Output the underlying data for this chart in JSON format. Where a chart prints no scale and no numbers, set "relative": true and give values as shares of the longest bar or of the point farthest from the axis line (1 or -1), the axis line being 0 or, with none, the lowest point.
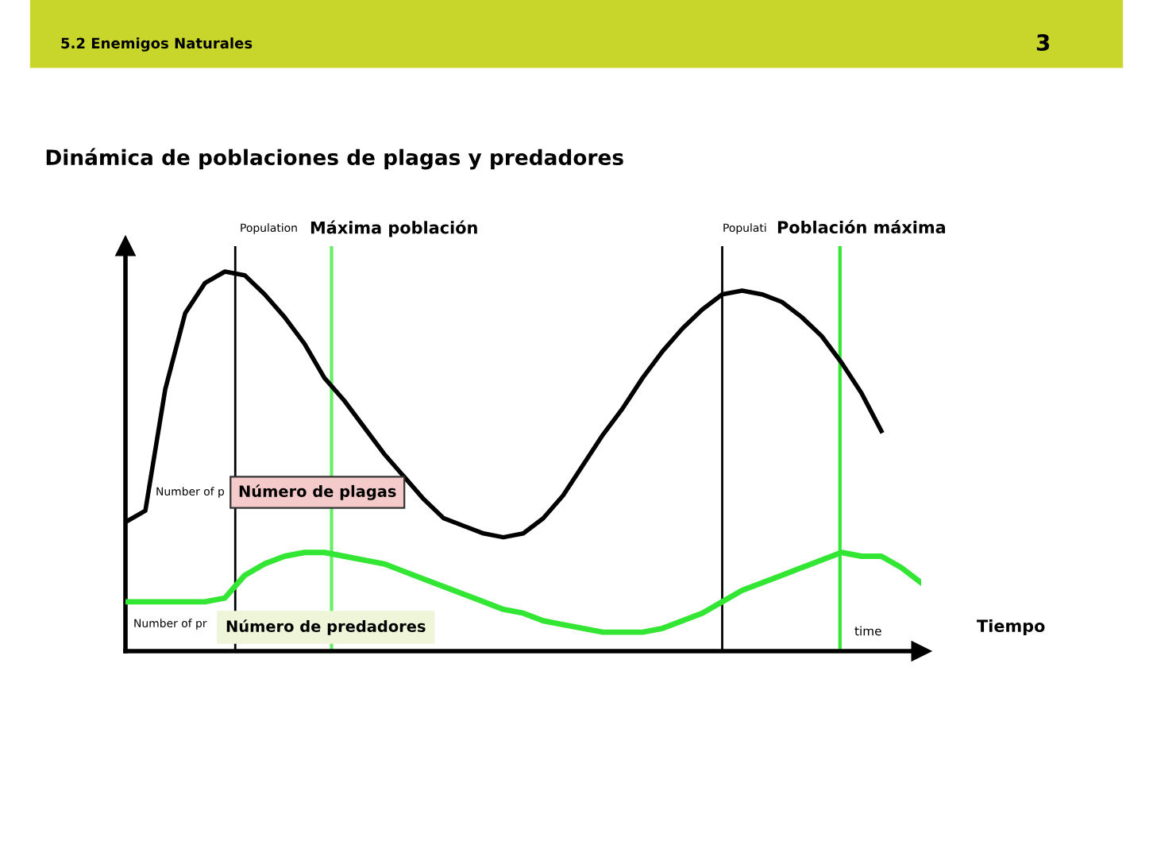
{
  "chart_data": {
    "type": "line",
    "title": "Dinámica de poblaciones de plagas y predadores",
    "relative": true,
    "legend": false,
    "marker": "none",
    "line_style": "solid",
    "categories": [
      null,
      null,
      null,
      null,
      null,
      null,
      null,
      null,
      null,
      null,
      null,
      null,
      null,
      null,
      null,
      null,
      null,
      null,
      null,
      null,
      null,
      null,
      null,
      null,
      null,
      null,
      null,
      null,
      null,
      null,
      null,
      null,
      null,
      null,
      null,
      null,
      null,
      null,
      null,
      null,
      null
    ],
    "series": [
      {
        "color": "#000000",
        "values": [
          0.34,
          0.37,
          0.69,
          0.89,
          0.97,
          1.0,
          0.99,
          0.94,
          0.88,
          0.81,
          0.72,
          0.66,
          0.59,
          0.52,
          0.46,
          0.4,
          0.35,
          0.33,
          0.31,
          0.3,
          0.31,
          0.35,
          0.41,
          0.49,
          0.57,
          0.64,
          0.72,
          0.79,
          0.85,
          0.9,
          0.94,
          0.95,
          0.94,
          0.92,
          0.88,
          0.83,
          0.76,
          0.68,
          0.58,
          null,
          null
        ]
      },
      {
        "color": "#33e633",
        "values": [
          0.13,
          0.13,
          0.13,
          0.13,
          0.13,
          0.14,
          0.2,
          0.23,
          0.25,
          0.26,
          0.26,
          0.25,
          0.24,
          0.23,
          0.21,
          0.19,
          0.17,
          0.15,
          0.13,
          0.11,
          0.1,
          0.08,
          0.07,
          0.06,
          0.05,
          0.05,
          0.05,
          0.06,
          0.08,
          0.1,
          0.13,
          0.16,
          0.18,
          0.2,
          0.22,
          0.24,
          0.26,
          0.25,
          0.25,
          0.22,
          0.18
        ]
      }
    ],
    "annotations": [
      "5.2 Enemigos Naturales",
      "3",
      "Number of p",
      "Número de plagas",
      "Number of pr",
      "Número de predadores",
      "time",
      "Tiempo",
      "Population",
      "Máxima población",
      "Populati",
      "Población máxima"
    ]
  }
}
